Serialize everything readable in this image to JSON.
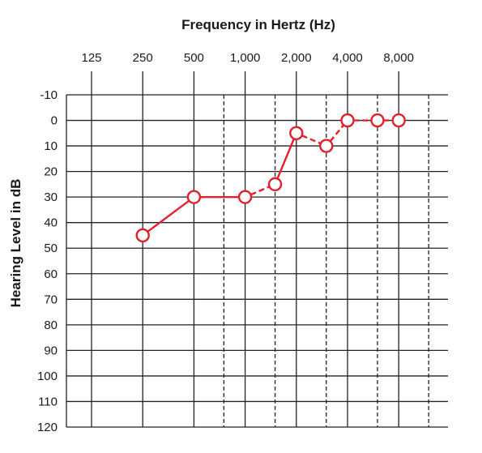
{
  "chart_data": {
    "type": "line",
    "title": "Frequency in Hertz (Hz)",
    "xlabel": "",
    "ylabel": "Hearing Level in dB",
    "x_tick_labels": [
      "125",
      "250",
      "500",
      "1,000",
      "2,000",
      "4,000",
      "8,000"
    ],
    "x_ticks": [
      125,
      250,
      500,
      1000,
      2000,
      4000,
      8000
    ],
    "x_dashed": [
      750,
      1500,
      3000,
      6000,
      12000
    ],
    "x_scale": "log",
    "y_tick_labels": [
      "-10",
      "0",
      "10",
      "20",
      "30",
      "40",
      "50",
      "60",
      "70",
      "80",
      "90",
      "100",
      "110",
      "120"
    ],
    "ylim": [
      -10,
      120
    ],
    "y_inverted": true,
    "grid": true,
    "series": [
      {
        "x": [
          250,
          500,
          1000,
          1500,
          2000,
          3000,
          4000,
          6000,
          8000
        ],
        "values": [
          45,
          30,
          30,
          25,
          5,
          10,
          0,
          0,
          0
        ],
        "color": "#e3202a",
        "marker": "circle-open"
      }
    ]
  }
}
